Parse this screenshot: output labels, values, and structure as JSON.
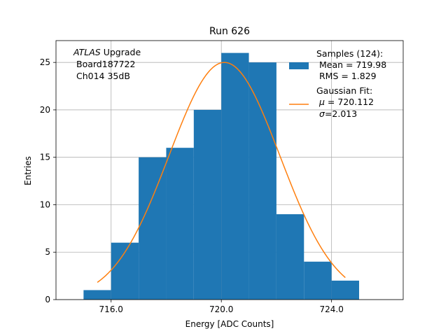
{
  "chart_data": {
    "type": "bar",
    "title": "Run 626",
    "xlabel": "Energy [ADC Counts]",
    "ylabel": "Entries",
    "xlim": [
      714.0,
      726.6
    ],
    "ylim": [
      0,
      27.3
    ],
    "xticks": [
      716.0,
      720.0,
      724.0
    ],
    "xtick_labels": [
      "716.0",
      "720.0",
      "724.0"
    ],
    "yticks": [
      0,
      5,
      10,
      15,
      20,
      25
    ],
    "ytick_labels": [
      "0",
      "5",
      "10",
      "15",
      "20",
      "25"
    ],
    "grid": true,
    "legend_position": "top-right",
    "colors": {
      "bars": "#1f77b4",
      "fit": "#ff7f0e",
      "grid": "#b0b0b0"
    },
    "histogram": {
      "name": "Samples (124):",
      "bin_edges": [
        715,
        716,
        717,
        718,
        719,
        720,
        721,
        722,
        723,
        724,
        725
      ],
      "counts": [
        1,
        6,
        15,
        16,
        20,
        26,
        25,
        9,
        4,
        2
      ]
    },
    "fit": {
      "name": "Gaussian Fit:",
      "mu": 720.112,
      "sigma": 2.013,
      "amplitude": 25.0,
      "x_range": [
        715.5,
        724.5
      ]
    },
    "legend": {
      "samples_title": "Samples (124):",
      "samples_mean": "Mean = 719.98",
      "samples_rms": "RMS = 1.829",
      "fit_title": "Gaussian Fit:",
      "fit_mu_symbol": "μ",
      "fit_mu_value": " = 720.112",
      "fit_sigma_symbol": "σ",
      "fit_sigma_value": "=2.013"
    },
    "annotation": {
      "experiment": "ATLAS",
      "experiment_suffix": " Upgrade",
      "board": "Board187722",
      "channel": "Ch014 35dB"
    }
  }
}
